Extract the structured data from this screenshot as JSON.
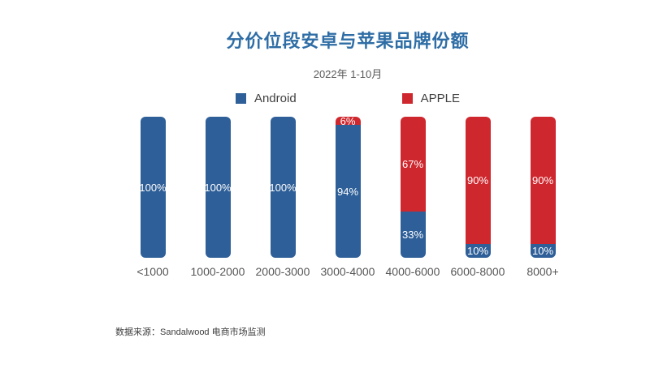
{
  "page": {
    "title": "分价位段安卓与苹果品牌份额",
    "subtitle": "2022年 1-10月",
    "source": "数据来源：Sandalwood 电商市场监测"
  },
  "legend": {
    "items": [
      {
        "label": "Android",
        "color": "#2e5f98"
      },
      {
        "label": "APPLE",
        "color": "#cf272e"
      }
    ]
  },
  "colors": {
    "android": "#2e5f98",
    "apple": "#cf272e",
    "title_text": "#2e6da5",
    "axis_text": "#575757",
    "bar_label_text": "#ffffff"
  },
  "chart_data": {
    "type": "bar",
    "stacked": true,
    "title": "分价位段安卓与苹果品牌份额",
    "subtitle": "2022年 1-10月",
    "categories": [
      "<1000",
      "1000-2000",
      "2000-3000",
      "3000-4000",
      "4000-6000",
      "6000-8000",
      "8000+"
    ],
    "series": [
      {
        "name": "Android",
        "color": "#2e5f98",
        "values": [
          100,
          100,
          100,
          94,
          33,
          10,
          10
        ]
      },
      {
        "name": "APPLE",
        "color": "#cf272e",
        "values": [
          0,
          0,
          0,
          6,
          67,
          90,
          90
        ]
      }
    ],
    "value_unit": "%",
    "ylim": [
      0,
      100
    ],
    "grid": false,
    "legend_position": "top",
    "data_labels": true
  }
}
